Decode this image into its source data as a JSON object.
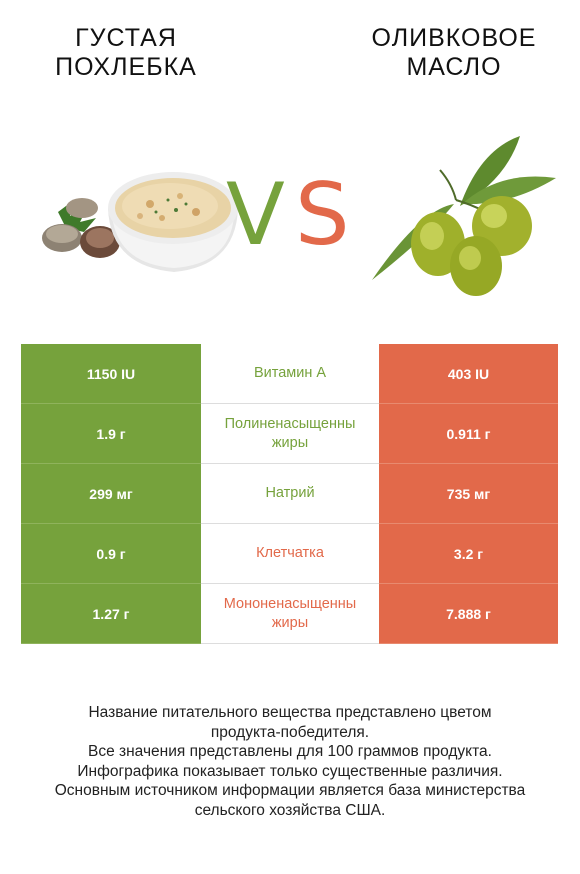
{
  "header": {
    "left_title_line1": "ГУСТАЯ",
    "left_title_line2": "ПОХЛЕБКА",
    "right_title_line1": "ОЛИВКОВОЕ",
    "right_title_line2": "МАСЛО",
    "vs_v": "V",
    "vs_s": "S"
  },
  "colors": {
    "left": "#76a23c",
    "right": "#e2694a"
  },
  "rows": [
    {
      "left": "1150 IU",
      "name_line1": "Витамин A",
      "name_line2": "",
      "right": "403 IU",
      "winner": "left"
    },
    {
      "left": "1.9 г",
      "name_line1": "Полиненасыщенны",
      "name_line2": "жиры",
      "right": "0.911 г",
      "winner": "left"
    },
    {
      "left": "299 мг",
      "name_line1": "Натрий",
      "name_line2": "",
      "right": "735 мг",
      "winner": "left"
    },
    {
      "left": "0.9 г",
      "name_line1": "Клетчатка",
      "name_line2": "",
      "right": "3.2 г",
      "winner": "right"
    },
    {
      "left": "1.27 г",
      "name_line1": "Мононенасыщенны",
      "name_line2": "жиры",
      "right": "7.888 г",
      "winner": "right"
    }
  ],
  "footer": {
    "line1": "Название питательного вещества представлено цветом",
    "line2": "продукта-победителя.",
    "line3": "Все значения представлены для 100 граммов продукта.",
    "line4": "Инфографика показывает только существенные различия.",
    "line5": "Основным источником информации является база министерства",
    "line6": "сельского хозяйства США."
  }
}
